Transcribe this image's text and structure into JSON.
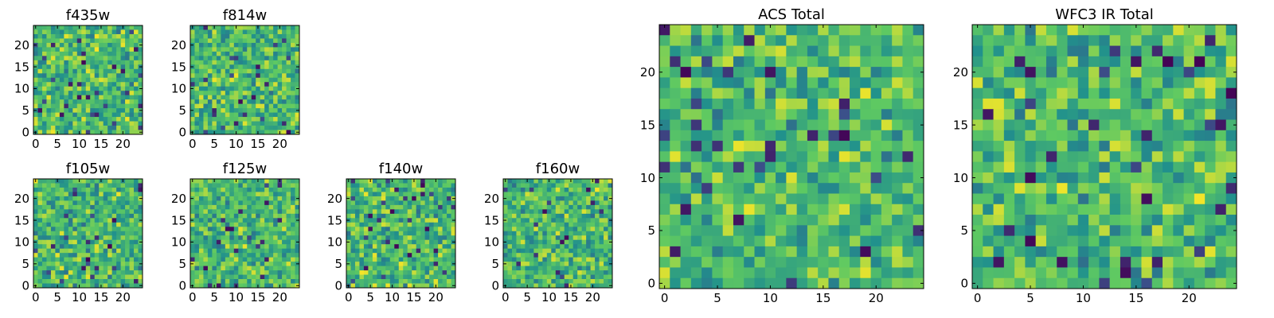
{
  "chart_data": [
    {
      "type": "heatmap",
      "title": "f435w",
      "xlim": [
        0,
        24
      ],
      "ylim": [
        0,
        24
      ],
      "xticks": [
        0,
        5,
        10,
        15,
        20
      ],
      "yticks": [
        0,
        5,
        10,
        15,
        20
      ],
      "grid_size": [
        25,
        25
      ],
      "colormap": "viridis",
      "values": "random pixel noise (per-pixel values not legible)",
      "grid": false
    },
    {
      "type": "heatmap",
      "title": "f814w",
      "xlim": [
        0,
        24
      ],
      "ylim": [
        0,
        24
      ],
      "xticks": [
        0,
        5,
        10,
        15,
        20
      ],
      "yticks": [
        0,
        5,
        10,
        15,
        20
      ],
      "grid_size": [
        25,
        25
      ],
      "colormap": "viridis",
      "values": "random pixel noise (per-pixel values not legible)",
      "grid": false
    },
    {
      "type": "heatmap",
      "title": "f105w",
      "xlim": [
        0,
        24
      ],
      "ylim": [
        0,
        24
      ],
      "xticks": [
        0,
        5,
        10,
        15,
        20
      ],
      "yticks": [
        0,
        5,
        10,
        15,
        20
      ],
      "grid_size": [
        25,
        25
      ],
      "colormap": "viridis",
      "values": "random pixel noise (per-pixel values not legible)",
      "grid": false
    },
    {
      "type": "heatmap",
      "title": "f125w",
      "xlim": [
        0,
        24
      ],
      "ylim": [
        0,
        24
      ],
      "xticks": [
        0,
        5,
        10,
        15,
        20
      ],
      "yticks": [
        0,
        5,
        10,
        15,
        20
      ],
      "grid_size": [
        25,
        25
      ],
      "colormap": "viridis",
      "values": "random pixel noise (per-pixel values not legible)",
      "grid": false
    },
    {
      "type": "heatmap",
      "title": "f140w",
      "xlim": [
        0,
        24
      ],
      "ylim": [
        0,
        24
      ],
      "xticks": [
        0,
        5,
        10,
        15,
        20
      ],
      "yticks": [
        0,
        5,
        10,
        15,
        20
      ],
      "grid_size": [
        25,
        25
      ],
      "colormap": "viridis",
      "values": "random pixel noise (per-pixel values not legible)",
      "grid": false
    },
    {
      "type": "heatmap",
      "title": "f160w",
      "xlim": [
        0,
        24
      ],
      "ylim": [
        0,
        24
      ],
      "xticks": [
        0,
        5,
        10,
        15,
        20
      ],
      "yticks": [
        0,
        5,
        10,
        15,
        20
      ],
      "grid_size": [
        25,
        25
      ],
      "colormap": "viridis",
      "values": "random pixel noise (per-pixel values not legible)",
      "grid": false
    },
    {
      "type": "heatmap",
      "title": "ACS Total",
      "xlim": [
        0,
        24
      ],
      "ylim": [
        0,
        24
      ],
      "xticks": [
        0,
        5,
        10,
        15,
        20
      ],
      "yticks": [
        0,
        5,
        10,
        15,
        20
      ],
      "grid_size": [
        25,
        25
      ],
      "colormap": "viridis",
      "values": "random pixel noise (per-pixel values not legible)",
      "grid": false
    },
    {
      "type": "heatmap",
      "title": "WFC3 IR Total",
      "xlim": [
        0,
        24
      ],
      "ylim": [
        0,
        24
      ],
      "xticks": [
        0,
        5,
        10,
        15,
        20
      ],
      "yticks": [
        0,
        5,
        10,
        15,
        20
      ],
      "grid_size": [
        25,
        25
      ],
      "colormap": "viridis",
      "values": "random pixel noise (per-pixel values not legible)",
      "grid": false
    }
  ],
  "colors": {
    "colormap": [
      "#440154",
      "#3b528b",
      "#21918c",
      "#5ec962",
      "#fde725"
    ],
    "axes": "#000000",
    "background": "#ffffff"
  }
}
